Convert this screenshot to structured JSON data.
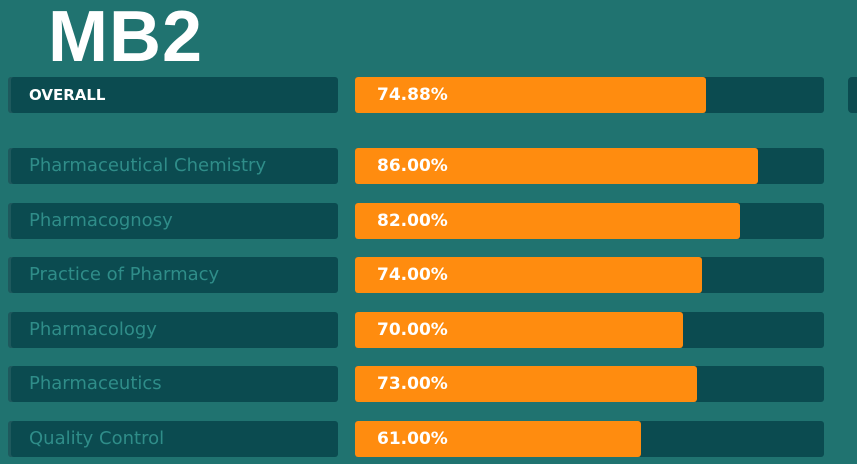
{
  "title": "MB2",
  "colors": {
    "background": "#207370",
    "track": "#0b4b50",
    "bar": "#ff8c0f",
    "subject_label": "#2f8d89",
    "value_label": "#ffffff"
  },
  "chart_data": {
    "type": "bar",
    "orientation": "horizontal",
    "title": "MB2",
    "xlim": [
      0,
      100
    ],
    "overall": {
      "label": "OVERALL",
      "value": 74.88,
      "display": "74.88%"
    },
    "categories": [
      "Pharmaceutical Chemistry",
      "Pharmacognosy",
      "Practice of Pharmacy",
      "Pharmacology",
      "Pharmaceutics",
      "Quality Control"
    ],
    "values": [
      86.0,
      82.0,
      74.0,
      70.0,
      73.0,
      61.0
    ],
    "display": [
      "86.00%",
      "82.00%",
      "74.00%",
      "70.00%",
      "73.00%",
      "61.00%"
    ]
  }
}
